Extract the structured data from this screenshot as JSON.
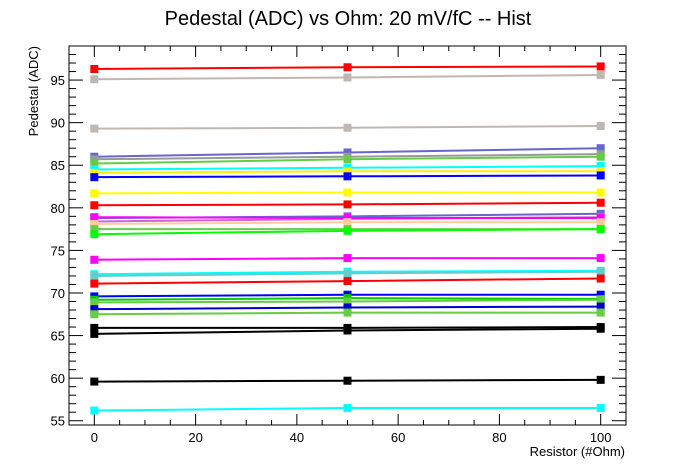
{
  "chart_data": {
    "type": "line",
    "title": "Pedestal (ADC) vs Ohm: 20 mV/fC -- Hist",
    "xlabel": "Resistor (#Ohm)",
    "ylabel": "Pedestal (ADC)",
    "xlim": [
      -5,
      105
    ],
    "ylim": [
      54.5,
      99
    ],
    "xticks": [
      0,
      20,
      40,
      60,
      80,
      100
    ],
    "yticks": [
      55,
      60,
      65,
      70,
      75,
      80,
      85,
      90,
      95
    ],
    "grid": false,
    "legend": "none",
    "x": [
      0,
      50,
      100
    ],
    "series": [
      {
        "color": "#ff0000",
        "values": [
          96.3,
          96.5,
          96.6
        ]
      },
      {
        "color": "#c0b8b0",
        "values": [
          95.1,
          95.3,
          95.6
        ]
      },
      {
        "color": "#c0b8b0",
        "values": [
          89.3,
          89.4,
          89.6
        ]
      },
      {
        "color": "#6666cc",
        "values": [
          86.0,
          86.5,
          87.0
        ]
      },
      {
        "color": "#999999",
        "values": [
          85.7,
          86.0,
          86.3
        ]
      },
      {
        "color": "#66cc44",
        "values": [
          85.2,
          85.7,
          86.0
        ]
      },
      {
        "color": "#00ffff",
        "values": [
          84.5,
          84.7,
          84.9
        ]
      },
      {
        "color": "#ffee00",
        "values": [
          84.1,
          84.3,
          84.3
        ]
      },
      {
        "color": "#0000ff",
        "values": [
          83.6,
          83.7,
          83.8
        ]
      },
      {
        "color": "#ffff00",
        "values": [
          81.7,
          81.8,
          81.8
        ]
      },
      {
        "color": "#ff0000",
        "values": [
          80.3,
          80.4,
          80.6
        ]
      },
      {
        "color": "#6666cc",
        "values": [
          78.8,
          79.0,
          79.3
        ]
      },
      {
        "color": "#cc66cc",
        "values": [
          78.4,
          78.7,
          78.9
        ]
      },
      {
        "color": "#ff00ff",
        "values": [
          78.9,
          78.8,
          78.8
        ]
      },
      {
        "color": "#ffcc99",
        "values": [
          78.1,
          78.3,
          78.3
        ]
      },
      {
        "color": "#66cc44",
        "values": [
          77.5,
          77.5,
          77.5
        ]
      },
      {
        "color": "#00ff00",
        "values": [
          76.9,
          77.3,
          77.5
        ]
      },
      {
        "color": "#ff00ff",
        "values": [
          73.9,
          74.1,
          74.1
        ]
      },
      {
        "color": "#00ffff",
        "values": [
          72.2,
          72.5,
          72.6
        ]
      },
      {
        "color": "#66cccc",
        "values": [
          72.0,
          72.3,
          72.5
        ]
      },
      {
        "color": "#ff0000",
        "values": [
          71.1,
          71.4,
          71.7
        ]
      },
      {
        "color": "#0000ff",
        "values": [
          69.6,
          69.8,
          69.8
        ]
      },
      {
        "color": "#00cc00",
        "values": [
          69.2,
          69.4,
          69.3
        ]
      },
      {
        "color": "#66cc44",
        "values": [
          68.9,
          69.0,
          69.2
        ]
      },
      {
        "color": "#0000cc",
        "values": [
          68.1,
          68.3,
          68.4
        ]
      },
      {
        "color": "#66cc44",
        "values": [
          67.5,
          67.7,
          67.7
        ]
      },
      {
        "color": "#000000",
        "values": [
          65.9,
          65.9,
          66.0
        ]
      },
      {
        "color": "#000000",
        "values": [
          65.2,
          65.6,
          65.8
        ]
      },
      {
        "color": "#000000",
        "values": [
          59.6,
          59.7,
          59.8
        ]
      },
      {
        "color": "#00ffff",
        "values": [
          56.2,
          56.5,
          56.5
        ]
      }
    ]
  }
}
